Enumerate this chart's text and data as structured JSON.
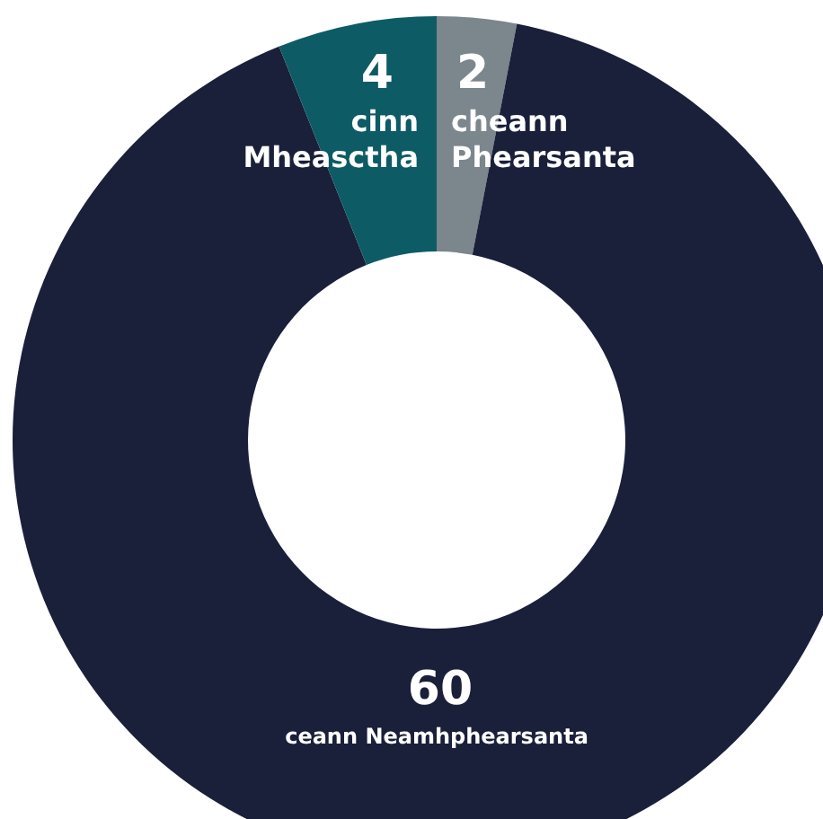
{
  "chart_data": {
    "type": "donut",
    "categories": [
      "cheann Phearsanta",
      "ceann Neamhphearsanta",
      "cinn Mheasctha"
    ],
    "values": [
      2,
      60,
      4
    ],
    "colors": [
      "#7b868d",
      "#1a1f3a",
      "#0d5b65"
    ],
    "data_labels": true
  }
}
